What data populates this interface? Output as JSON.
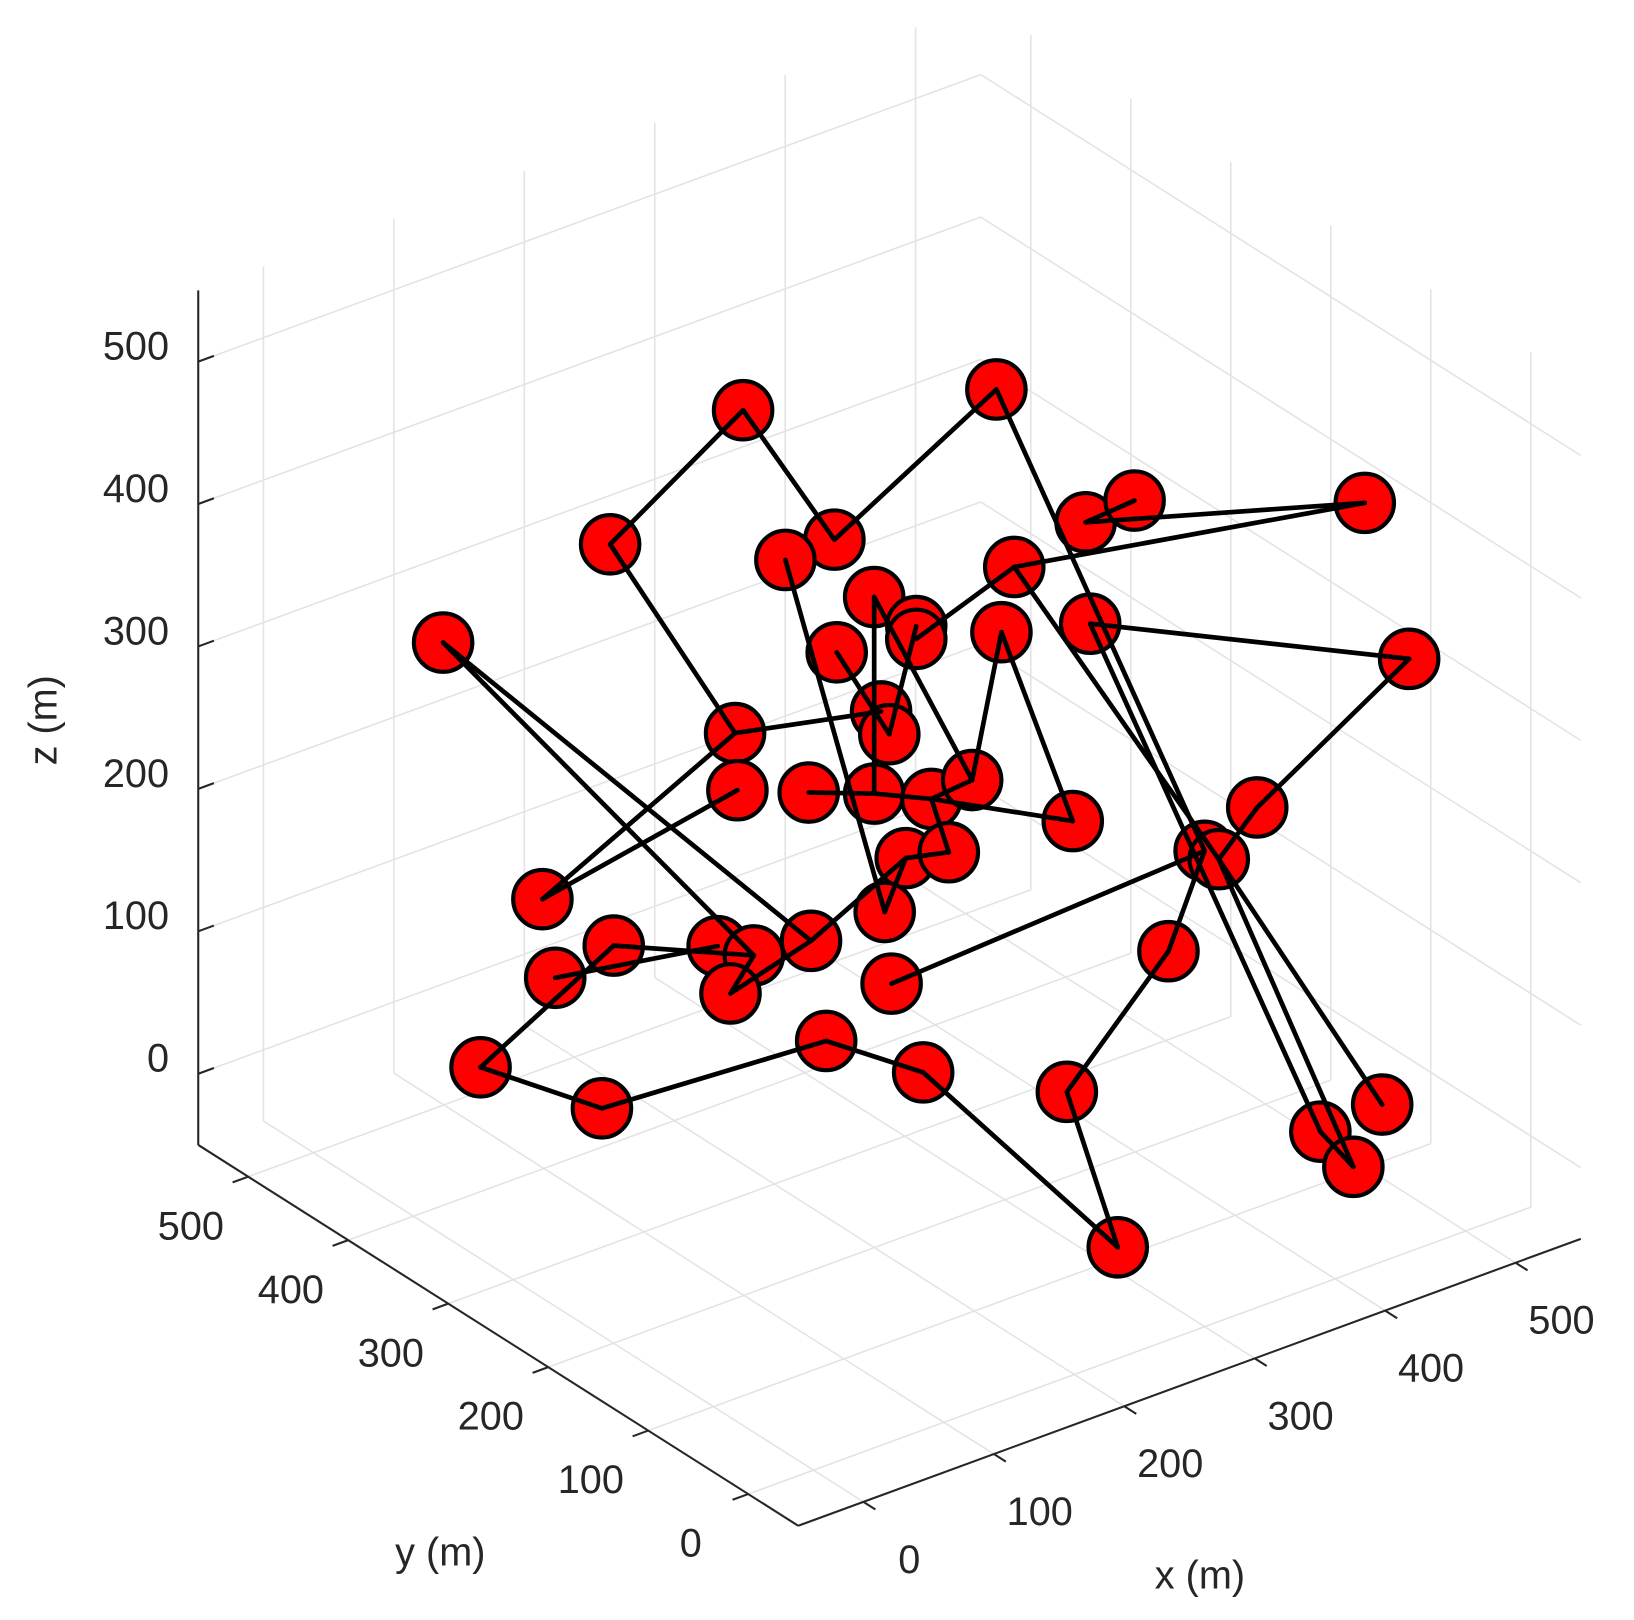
{
  "chart_data": {
    "type": "scatter3d",
    "xlabel": "x (m)",
    "ylabel": "y (m)",
    "zlabel": "z (m)",
    "xlim": [
      -50,
      550
    ],
    "ylim": [
      -50,
      550
    ],
    "zlim": [
      -50,
      550
    ],
    "xticks": [
      0,
      100,
      200,
      300,
      400,
      500
    ],
    "yticks": [
      0,
      100,
      200,
      300,
      400,
      500
    ],
    "zticks": [
      0,
      100,
      200,
      300,
      400,
      500
    ],
    "grid": true,
    "color": "#ff0000",
    "edge_color": "#000000",
    "x": [
      219,
      358,
      91,
      197,
      174,
      316,
      339,
      448,
      282,
      216,
      236,
      236,
      12,
      198,
      276,
      318,
      469,
      219,
      223,
      150,
      151,
      185,
      216,
      243,
      262,
      310,
      397,
      372,
      379,
      231,
      251,
      59,
      221,
      93,
      142,
      159,
      186,
      65,
      148,
      224,
      355,
      30,
      87,
      193,
      239,
      307,
      456,
      427,
      427,
      264
    ],
    "y": [
      356,
      284,
      322,
      236,
      255,
      140,
      121,
      33,
      167,
      221,
      205,
      205,
      386,
      235,
      172,
      138,
      16,
      218,
      215,
      274,
      273,
      246,
      221,
      199,
      183,
      145,
      74,
      94,
      89,
      209,
      192,
      348,
      217,
      321,
      281,
      267,
      245,
      343,
      276,
      214,
      108,
      372,
      325,
      239,
      202,
      147,
      26,
      50,
      17,
      40
    ],
    "z": [
      462,
      462,
      426,
      432,
      417,
      447,
      463,
      464,
      415,
      392,
      372,
      363,
      355,
      353,
      369,
      376,
      355,
      312,
      296,
      295,
      255,
      254,
      254,
      251,
      265,
      237,
      249,
      218,
      212,
      209,
      214,
      176,
      171,
      144,
      145,
      139,
      150,
      121,
      112,
      121,
      147,
      57,
      30,
      80,
      59,
      47,
      42,
      22,
      12,
      0
    ],
    "edges": [
      [
        0,
        2
      ],
      [
        0,
        3
      ],
      [
        1,
        3
      ],
      [
        1,
        27
      ],
      [
        2,
        19
      ],
      [
        4,
        32
      ],
      [
        5,
        6
      ],
      [
        5,
        7
      ],
      [
        8,
        7
      ],
      [
        11,
        8
      ],
      [
        19,
        17
      ],
      [
        8,
        28
      ],
      [
        15,
        16
      ],
      [
        15,
        47
      ],
      [
        16,
        26
      ],
      [
        28,
        46
      ],
      [
        27,
        39
      ],
      [
        27,
        40
      ],
      [
        40,
        45
      ],
      [
        45,
        49
      ],
      [
        49,
        44
      ],
      [
        44,
        43
      ],
      [
        43,
        42
      ],
      [
        42,
        41
      ],
      [
        41,
        33
      ],
      [
        33,
        35
      ],
      [
        37,
        34
      ],
      [
        12,
        35
      ],
      [
        12,
        36
      ],
      [
        31,
        20
      ],
      [
        31,
        19
      ],
      [
        21,
        22
      ],
      [
        22,
        23
      ],
      [
        23,
        24
      ],
      [
        24,
        9
      ],
      [
        24,
        14
      ],
      [
        14,
        25
      ],
      [
        25,
        23
      ],
      [
        9,
        22
      ],
      [
        13,
        18
      ],
      [
        29,
        30
      ],
      [
        30,
        23
      ],
      [
        32,
        29
      ],
      [
        36,
        29
      ],
      [
        38,
        36
      ],
      [
        38,
        35
      ],
      [
        47,
        48
      ],
      [
        28,
        48
      ],
      [
        26,
        28
      ],
      [
        10,
        18
      ]
    ]
  }
}
